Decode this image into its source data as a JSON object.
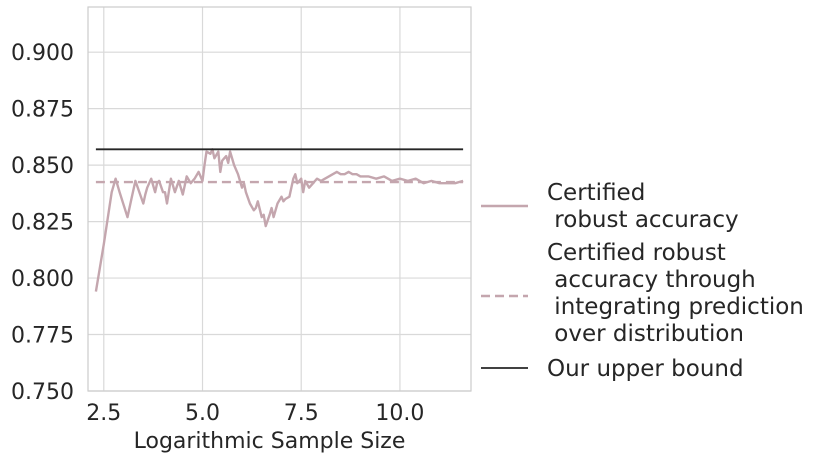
{
  "chart_data": {
    "type": "line",
    "title": "",
    "xlabel": "Logarithmic Sample Size",
    "ylabel": "",
    "xlim": [
      2.1,
      11.8
    ],
    "ylim": [
      0.75,
      0.92
    ],
    "x_ticks": [
      "2.5",
      "5.0",
      "7.5",
      "10.0"
    ],
    "y_ticks": [
      "0.750",
      "0.775",
      "0.800",
      "0.825",
      "0.850",
      "0.875",
      "0.900"
    ],
    "x_tick_values": [
      2.5,
      5.0,
      7.5,
      10.0
    ],
    "y_tick_values": [
      0.75,
      0.775,
      0.8,
      0.825,
      0.85,
      0.875,
      0.9
    ],
    "grid": true,
    "legend_position": "right",
    "series": [
      {
        "name": "Certified\n robust accuracy",
        "color": "#c4a6ae",
        "style": "solid",
        "x": [
          2.3,
          2.5,
          2.7,
          2.8,
          2.9,
          3.1,
          3.2,
          3.3,
          3.5,
          3.55,
          3.6,
          3.7,
          3.8,
          3.85,
          3.9,
          4.0,
          4.05,
          4.1,
          4.2,
          4.25,
          4.3,
          4.4,
          4.5,
          4.6,
          4.7,
          4.8,
          4.9,
          5.0,
          5.05,
          5.1,
          5.2,
          5.25,
          5.3,
          5.4,
          5.45,
          5.5,
          5.55,
          5.6,
          5.65,
          5.7,
          5.8,
          5.9,
          6.0,
          6.05,
          6.1,
          6.2,
          6.3,
          6.35,
          6.4,
          6.5,
          6.55,
          6.6,
          6.7,
          6.75,
          6.8,
          6.9,
          7.0,
          7.05,
          7.1,
          7.2,
          7.3,
          7.35,
          7.4,
          7.5,
          7.55,
          7.6,
          7.7,
          7.8,
          7.85,
          7.9,
          8.0,
          8.1,
          8.2,
          8.3,
          8.4,
          8.5,
          8.6,
          8.7,
          8.8,
          8.9,
          9.0,
          9.2,
          9.4,
          9.6,
          9.8,
          10.0,
          10.2,
          10.4,
          10.6,
          10.8,
          11.0,
          11.2,
          11.4,
          11.6
        ],
        "y": [
          0.794,
          0.815,
          0.838,
          0.844,
          0.838,
          0.827,
          0.835,
          0.843,
          0.833,
          0.837,
          0.84,
          0.844,
          0.838,
          0.842,
          0.843,
          0.838,
          0.838,
          0.833,
          0.844,
          0.841,
          0.838,
          0.843,
          0.837,
          0.845,
          0.842,
          0.844,
          0.847,
          0.843,
          0.85,
          0.856,
          0.855,
          0.857,
          0.853,
          0.856,
          0.847,
          0.852,
          0.853,
          0.854,
          0.851,
          0.856,
          0.85,
          0.846,
          0.84,
          0.842,
          0.838,
          0.833,
          0.83,
          0.831,
          0.834,
          0.827,
          0.828,
          0.823,
          0.828,
          0.831,
          0.827,
          0.833,
          0.836,
          0.834,
          0.835,
          0.836,
          0.844,
          0.846,
          0.842,
          0.844,
          0.838,
          0.843,
          0.84,
          0.842,
          0.843,
          0.844,
          0.843,
          0.844,
          0.845,
          0.846,
          0.847,
          0.846,
          0.846,
          0.847,
          0.846,
          0.846,
          0.845,
          0.845,
          0.844,
          0.845,
          0.843,
          0.844,
          0.843,
          0.844,
          0.842,
          0.843,
          0.842,
          0.842,
          0.842,
          0.843
        ]
      },
      {
        "name": "Certified robust\n accuracy through\n integrating prediction\n over distribution",
        "color": "#c4a6ae",
        "style": "dashed",
        "x": [
          2.3,
          11.6
        ],
        "y": [
          0.8425,
          0.8425
        ]
      },
      {
        "name": "Our upper bound",
        "color": "#262626",
        "style": "solid",
        "x": [
          2.3,
          11.6
        ],
        "y": [
          0.857,
          0.857
        ]
      }
    ]
  }
}
